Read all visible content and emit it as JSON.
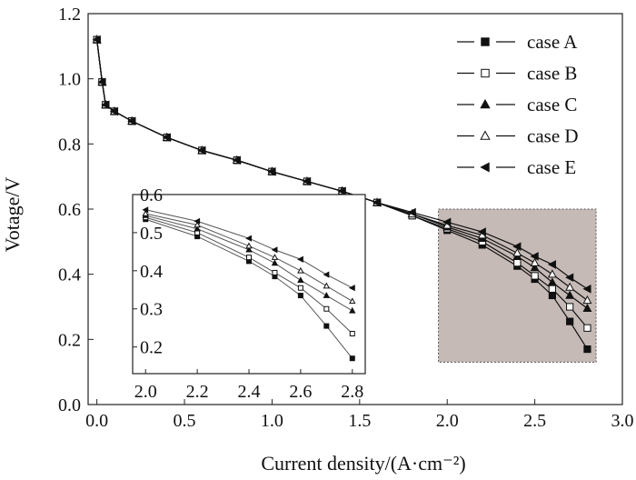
{
  "chart_data": {
    "type": "line",
    "xlabel": "Current density/(A·cm⁻²)",
    "ylabel": "Votage/V",
    "xlim": [
      -0.05,
      3.0
    ],
    "ylim": [
      0.0,
      1.2
    ],
    "xticks": [
      "0.0",
      "0.5",
      "1.0",
      "1.5",
      "2.0",
      "2.5",
      "3.0"
    ],
    "yticks": [
      "0.0",
      "0.2",
      "0.4",
      "0.6",
      "0.8",
      "1.0",
      "1.2"
    ],
    "x": [
      0.0,
      0.03,
      0.05,
      0.1,
      0.2,
      0.4,
      0.6,
      0.8,
      1.0,
      1.2,
      1.4,
      1.6,
      1.8,
      2.0,
      2.2,
      2.4,
      2.5,
      2.6,
      2.7,
      2.8
    ],
    "series": [
      {
        "name": "case A",
        "marker": "filled-square",
        "values": [
          1.12,
          0.99,
          0.92,
          0.9,
          0.87,
          0.82,
          0.78,
          0.75,
          0.715,
          0.685,
          0.655,
          0.62,
          0.58,
          0.535,
          0.49,
          0.425,
          0.385,
          0.335,
          0.255,
          0.17
        ]
      },
      {
        "name": "case B",
        "marker": "open-square",
        "values": [
          1.12,
          0.99,
          0.92,
          0.9,
          0.87,
          0.82,
          0.78,
          0.75,
          0.715,
          0.685,
          0.655,
          0.62,
          0.58,
          0.54,
          0.5,
          0.435,
          0.395,
          0.355,
          0.3,
          0.235
        ]
      },
      {
        "name": "case C",
        "marker": "filled-triangle",
        "values": [
          1.12,
          0.99,
          0.92,
          0.9,
          0.87,
          0.82,
          0.78,
          0.75,
          0.715,
          0.685,
          0.655,
          0.62,
          0.585,
          0.545,
          0.51,
          0.455,
          0.42,
          0.375,
          0.335,
          0.295
        ]
      },
      {
        "name": "case D",
        "marker": "open-triangle",
        "values": [
          1.12,
          0.99,
          0.92,
          0.9,
          0.87,
          0.82,
          0.78,
          0.75,
          0.715,
          0.685,
          0.655,
          0.62,
          0.585,
          0.55,
          0.52,
          0.465,
          0.435,
          0.4,
          0.36,
          0.32
        ]
      },
      {
        "name": "case E",
        "marker": "filled-left-triangle",
        "values": [
          1.12,
          0.99,
          0.92,
          0.9,
          0.87,
          0.82,
          0.78,
          0.75,
          0.715,
          0.685,
          0.655,
          0.62,
          0.59,
          0.56,
          0.53,
          0.485,
          0.455,
          0.43,
          0.39,
          0.355
        ]
      }
    ],
    "legend": {
      "position": "top-right"
    },
    "highlight_region": {
      "x": [
        1.95,
        2.85
      ],
      "y": [
        0.13,
        0.6
      ],
      "color": "#c5bab6"
    },
    "inset": {
      "xlim": [
        1.95,
        2.85
      ],
      "ylim": [
        0.13,
        0.6
      ],
      "xticks": [
        "2.0",
        "2.2",
        "2.4",
        "2.6",
        "2.8"
      ],
      "yticks": [
        "0.2",
        "0.3",
        "0.4",
        "0.5",
        "0.6"
      ],
      "x_from": 2.0
    }
  }
}
